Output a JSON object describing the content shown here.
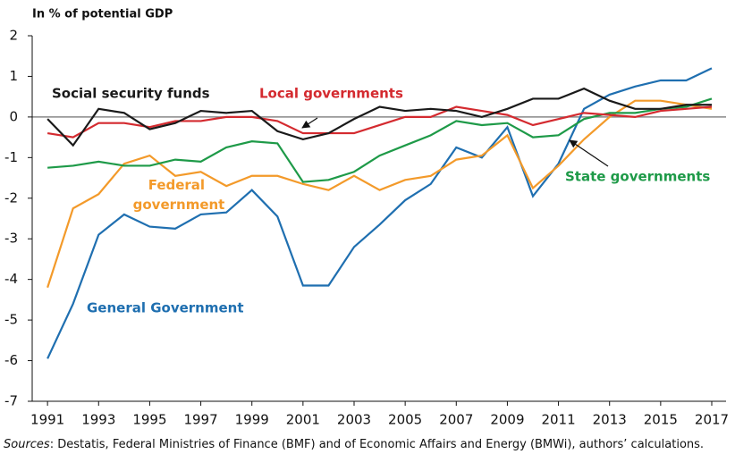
{
  "chart_data": {
    "type": "line",
    "y_label": "In % of potential GDP",
    "source_label": "Sources",
    "source": ": Destatis, Federal Ministries of Finance (BMF) and of Economic Affairs and Energy (BMWi), authors’ calculations.",
    "x": [
      1991,
      1992,
      1993,
      1994,
      1995,
      1996,
      1997,
      1998,
      1999,
      2000,
      2001,
      2002,
      2003,
      2004,
      2005,
      2006,
      2007,
      2008,
      2009,
      2010,
      2011,
      2012,
      2013,
      2014,
      2015,
      2016,
      2017
    ],
    "xlim": [
      1990.4,
      2017.56
    ],
    "xticks": [
      1991,
      1993,
      1995,
      1997,
      1999,
      2001,
      2003,
      2005,
      2007,
      2009,
      2011,
      2013,
      2015,
      2017
    ],
    "ylim": [
      -7,
      2
    ],
    "yticks": [
      -7,
      -6,
      -5,
      -4,
      -3,
      -2,
      -1,
      0,
      1,
      2
    ],
    "series": [
      {
        "name": "General Government",
        "color": "#1f6fb0",
        "values": [
          -5.95,
          -4.6,
          -2.9,
          -2.4,
          -2.7,
          -2.75,
          -2.4,
          -2.35,
          -1.8,
          -2.45,
          -4.15,
          -4.15,
          -3.2,
          -2.65,
          -2.05,
          -1.65,
          -0.75,
          -1.0,
          -0.25,
          -1.95,
          -1.15,
          0.2,
          0.55,
          0.75,
          0.9,
          0.9,
          1.2
        ]
      },
      {
        "name": "Federal government",
        "color": "#f39a2a",
        "values": [
          -4.2,
          -2.25,
          -1.9,
          -1.15,
          -0.95,
          -1.45,
          -1.35,
          -1.7,
          -1.45,
          -1.45,
          -1.65,
          -1.8,
          -1.45,
          -1.8,
          -1.55,
          -1.45,
          -1.05,
          -0.95,
          -0.45,
          -1.75,
          -1.2,
          -0.55,
          0.0,
          0.4,
          0.4,
          0.3,
          0.2
        ]
      },
      {
        "name": "State governments",
        "color": "#1e9a48",
        "values": [
          -1.25,
          -1.2,
          -1.1,
          -1.2,
          -1.2,
          -1.05,
          -1.1,
          -0.75,
          -0.6,
          -0.65,
          -1.6,
          -1.55,
          -1.35,
          -0.95,
          -0.7,
          -0.45,
          -0.1,
          -0.2,
          -0.15,
          -0.5,
          -0.45,
          -0.05,
          0.1,
          0.1,
          0.2,
          0.25,
          0.45
        ]
      },
      {
        "name": "Local governments",
        "color": "#d42a2f",
        "values": [
          -0.4,
          -0.5,
          -0.15,
          -0.15,
          -0.25,
          -0.1,
          -0.1,
          0.0,
          0.0,
          -0.1,
          -0.4,
          -0.4,
          -0.4,
          -0.2,
          0.0,
          0.0,
          0.25,
          0.15,
          0.05,
          -0.2,
          -0.05,
          0.1,
          0.05,
          0.0,
          0.15,
          0.2,
          0.25
        ]
      },
      {
        "name": "Social security funds",
        "color": "#1a1a1a",
        "values": [
          -0.05,
          -0.7,
          0.2,
          0.1,
          -0.3,
          -0.15,
          0.15,
          0.1,
          0.15,
          -0.35,
          -0.55,
          -0.4,
          -0.05,
          0.25,
          0.15,
          0.2,
          0.15,
          0.0,
          0.2,
          0.45,
          0.45,
          0.7,
          0.4,
          0.2,
          0.2,
          0.3,
          0.3
        ]
      }
    ]
  }
}
